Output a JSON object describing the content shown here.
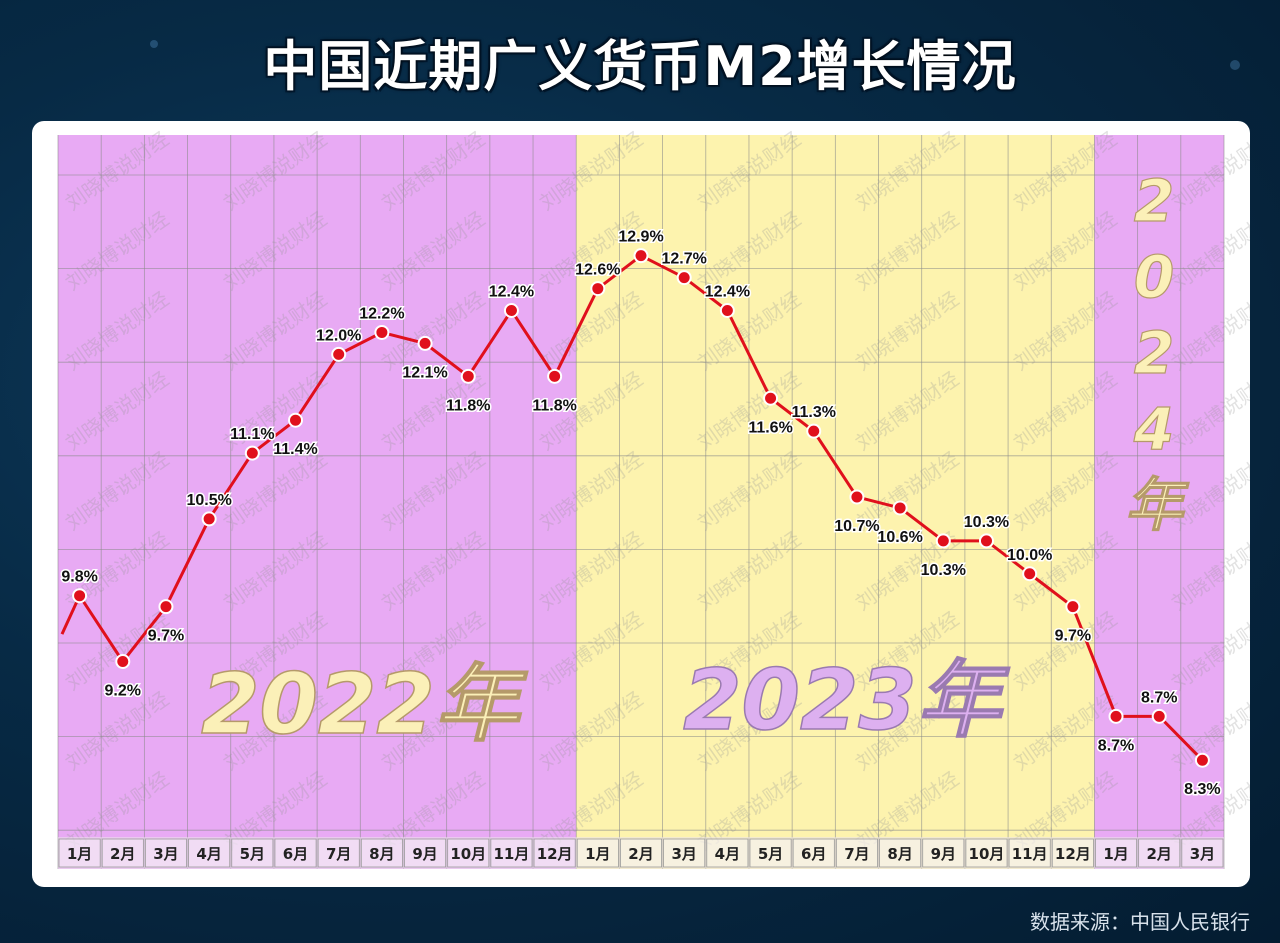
{
  "title": "中国近期广义货币M2增长情况",
  "source": "数据来源：中国人民银行",
  "watermark": "刘晓博说财经",
  "colors": {
    "year2022_bg": "#e8aaf4",
    "year2023_bg": "#fdf3ae",
    "year2024_bg": "#e8aaf4",
    "line": "#e0101c",
    "year_label_fill": "#fbf0b8",
    "year2023_label_fill": "#ddb0f0"
  },
  "chart_data": {
    "type": "line",
    "title": "中国近期广义货币M2增长情况",
    "xlabel": "",
    "ylabel": "",
    "ylim": [
      7.6,
      14.0
    ],
    "grid": true,
    "categories": [
      "1月",
      "2月",
      "3月",
      "4月",
      "5月",
      "6月",
      "7月",
      "8月",
      "9月",
      "10月",
      "11月",
      "12月",
      "1月",
      "2月",
      "3月",
      "4月",
      "5月",
      "6月",
      "7月",
      "8月",
      "9月",
      "10月",
      "11月",
      "12月",
      "1月",
      "2月",
      "3月"
    ],
    "series": [
      {
        "values": [
          9.8,
          9.2,
          9.7,
          10.5,
          11.1,
          11.4,
          12.0,
          12.2,
          12.1,
          11.8,
          12.4,
          11.8,
          12.6,
          12.9,
          12.7,
          12.4,
          11.6,
          11.3,
          10.7,
          10.6,
          10.3,
          10.3,
          10.0,
          9.7,
          8.7,
          8.7,
          8.3
        ],
        "labels": [
          "9.8%",
          "9.2%",
          "9.7%",
          "10.5%",
          "11.1%",
          "11.4%",
          "12.0%",
          "12.2%",
          "12.1%",
          "11.8%",
          "12.4%",
          "11.8%",
          "12.6%",
          "12.9%",
          "12.7%",
          "12.4%",
          "11.6%",
          "11.3%",
          "10.7%",
          "10.6%",
          "10.3%",
          "10.3%",
          "10.0%",
          "9.7%",
          "8.7%",
          "8.7%",
          "8.3%"
        ]
      }
    ],
    "year_groups": [
      {
        "label": "2022年",
        "count": 12
      },
      {
        "label": "2023年",
        "count": 12
      },
      {
        "label": "2024年",
        "count": 3
      }
    ]
  }
}
